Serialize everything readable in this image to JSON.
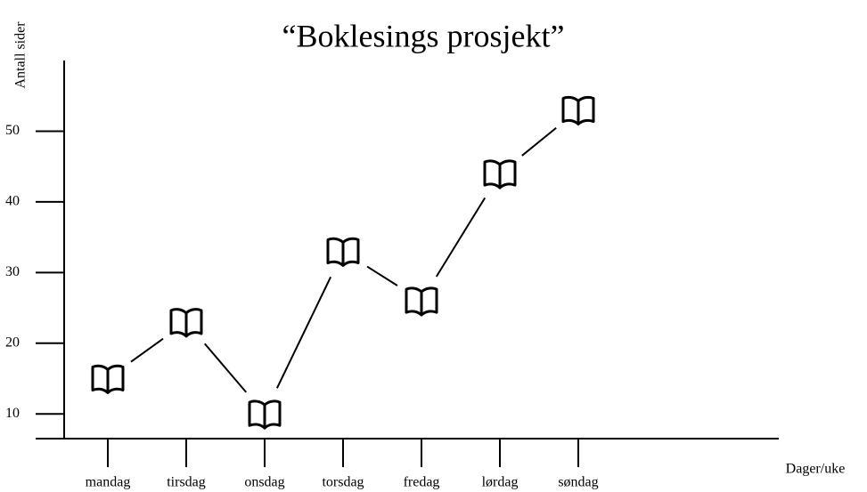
{
  "chart_data": {
    "type": "line",
    "title": "“Boklesings prosjekt”",
    "y_label": "Antall sider",
    "x_label": "Dager/uke",
    "categories": [
      "mandag",
      "tirsdag",
      "onsdag",
      "torsdag",
      "fredag",
      "lørdag",
      "søndag"
    ],
    "values": [
      15,
      23,
      10,
      33,
      26,
      44,
      53
    ],
    "color": "#000000",
    "ylim": [
      6.5,
      60
    ],
    "yticks": [
      10,
      20,
      30,
      40,
      50
    ]
  }
}
